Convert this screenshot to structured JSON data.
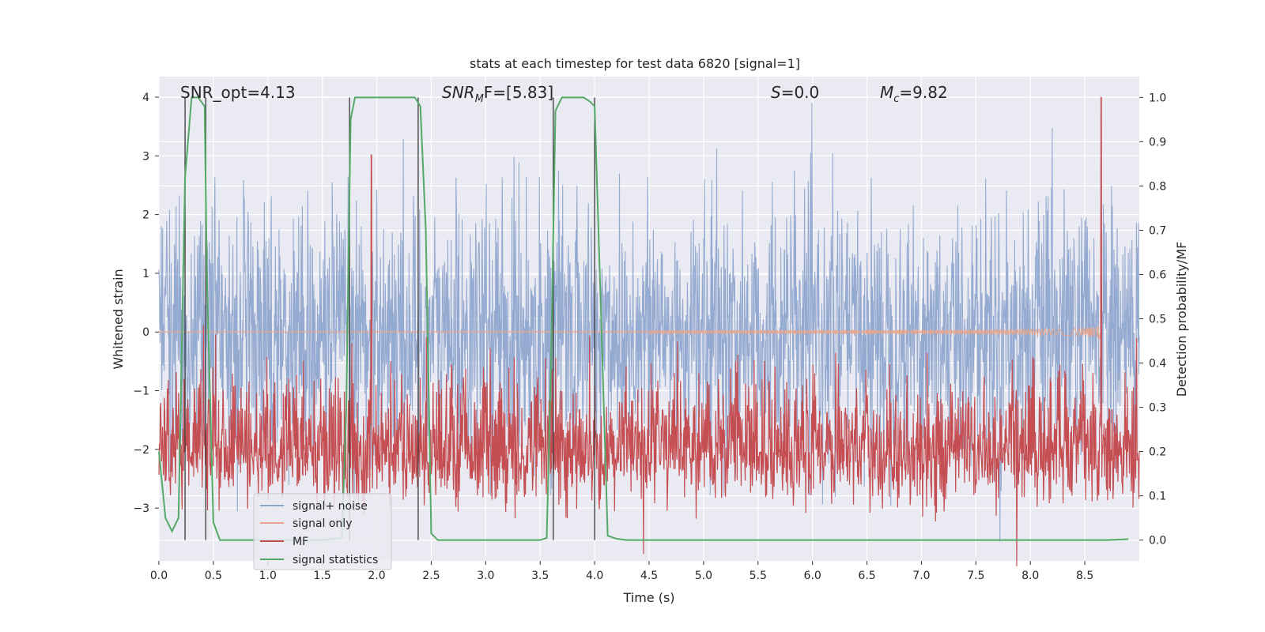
{
  "chart_data": {
    "type": "line",
    "title": "stats at each timestep for test data 6820 [signal=1]",
    "xlabel": "Time (s)",
    "ylabel_left": "Whitened strain",
    "ylabel_right": "Detection probability/MF",
    "xlim": [
      0.0,
      9.0
    ],
    "ylim_left": [
      -3.9,
      4.35
    ],
    "ylim_right": [
      -0.047,
      1.047
    ],
    "xticks": [
      "0.0",
      "0.5",
      "1.0",
      "1.5",
      "2.0",
      "2.5",
      "3.0",
      "3.5",
      "4.0",
      "4.5",
      "5.0",
      "5.5",
      "6.0",
      "6.5",
      "7.0",
      "7.5",
      "8.0",
      "8.5"
    ],
    "yticks_left": [
      "−3",
      "−2",
      "−1",
      "0",
      "1",
      "2",
      "3",
      "4"
    ],
    "yticks_right": [
      "0.0",
      "0.1",
      "0.2",
      "0.3",
      "0.4",
      "0.5",
      "0.6",
      "0.7",
      "0.8",
      "0.9",
      "1.0"
    ],
    "grid": true,
    "legend_position": "lower-left",
    "annotations": {
      "snr_opt": "SNR_opt=4.13",
      "snr_mf_label": "SNR",
      "snr_mf_sub": "M",
      "snr_mf_rest": "F=[5.83]",
      "s_label": "S",
      "s_rest": "=0.0",
      "mc_label": "M",
      "mc_sub": "c",
      "mc_rest": "=9.82"
    },
    "series": [
      {
        "name": "signal+ noise",
        "color": "#8fa6cf",
        "description": "whitened strain noise, amplitude roughly ±2.5 with peaks near ±4"
      },
      {
        "name": "signal only",
        "color": "#e8a58c",
        "chirp_end_time": 8.65,
        "chirp_end_amplitude": -0.62
      },
      {
        "name": "MF",
        "color": "#c44e52",
        "baseline": 0.2,
        "peak_times": [
          1.95,
          8.65
        ],
        "peak_values": [
          0.87,
          1.0
        ]
      },
      {
        "name": "signal statistics",
        "color": "#55a868",
        "x": [
          0.0,
          0.06,
          0.12,
          0.18,
          0.24,
          0.3,
          0.36,
          0.42,
          0.44,
          0.5,
          0.56,
          0.7,
          1.0,
          1.5,
          1.68,
          1.72,
          1.76,
          1.8,
          2.0,
          2.2,
          2.35,
          2.4,
          2.45,
          2.5,
          2.56,
          2.7,
          3.0,
          3.5,
          3.56,
          3.6,
          3.64,
          3.7,
          3.9,
          3.96,
          4.0,
          4.06,
          4.12,
          4.2,
          4.3,
          5.0,
          6.0,
          7.0,
          8.0,
          8.7,
          8.9
        ],
        "y": [
          0.2,
          0.05,
          0.02,
          0.05,
          0.82,
          1.0,
          1.0,
          0.98,
          0.6,
          0.04,
          0.0,
          0.0,
          0.0,
          0.0,
          0.005,
          0.3,
          0.95,
          1.0,
          1.0,
          1.0,
          1.0,
          0.98,
          0.7,
          0.015,
          0.0,
          0.0,
          0.0,
          0.0,
          0.005,
          0.4,
          0.97,
          1.0,
          1.0,
          0.99,
          0.98,
          0.5,
          0.01,
          0.003,
          0.0,
          0.0,
          0.0,
          0.0,
          0.0,
          0.0,
          0.002
        ]
      }
    ],
    "vertical_lines_x": [
      0.24,
      0.43,
      1.75,
      2.38,
      3.62,
      4.0
    ]
  }
}
